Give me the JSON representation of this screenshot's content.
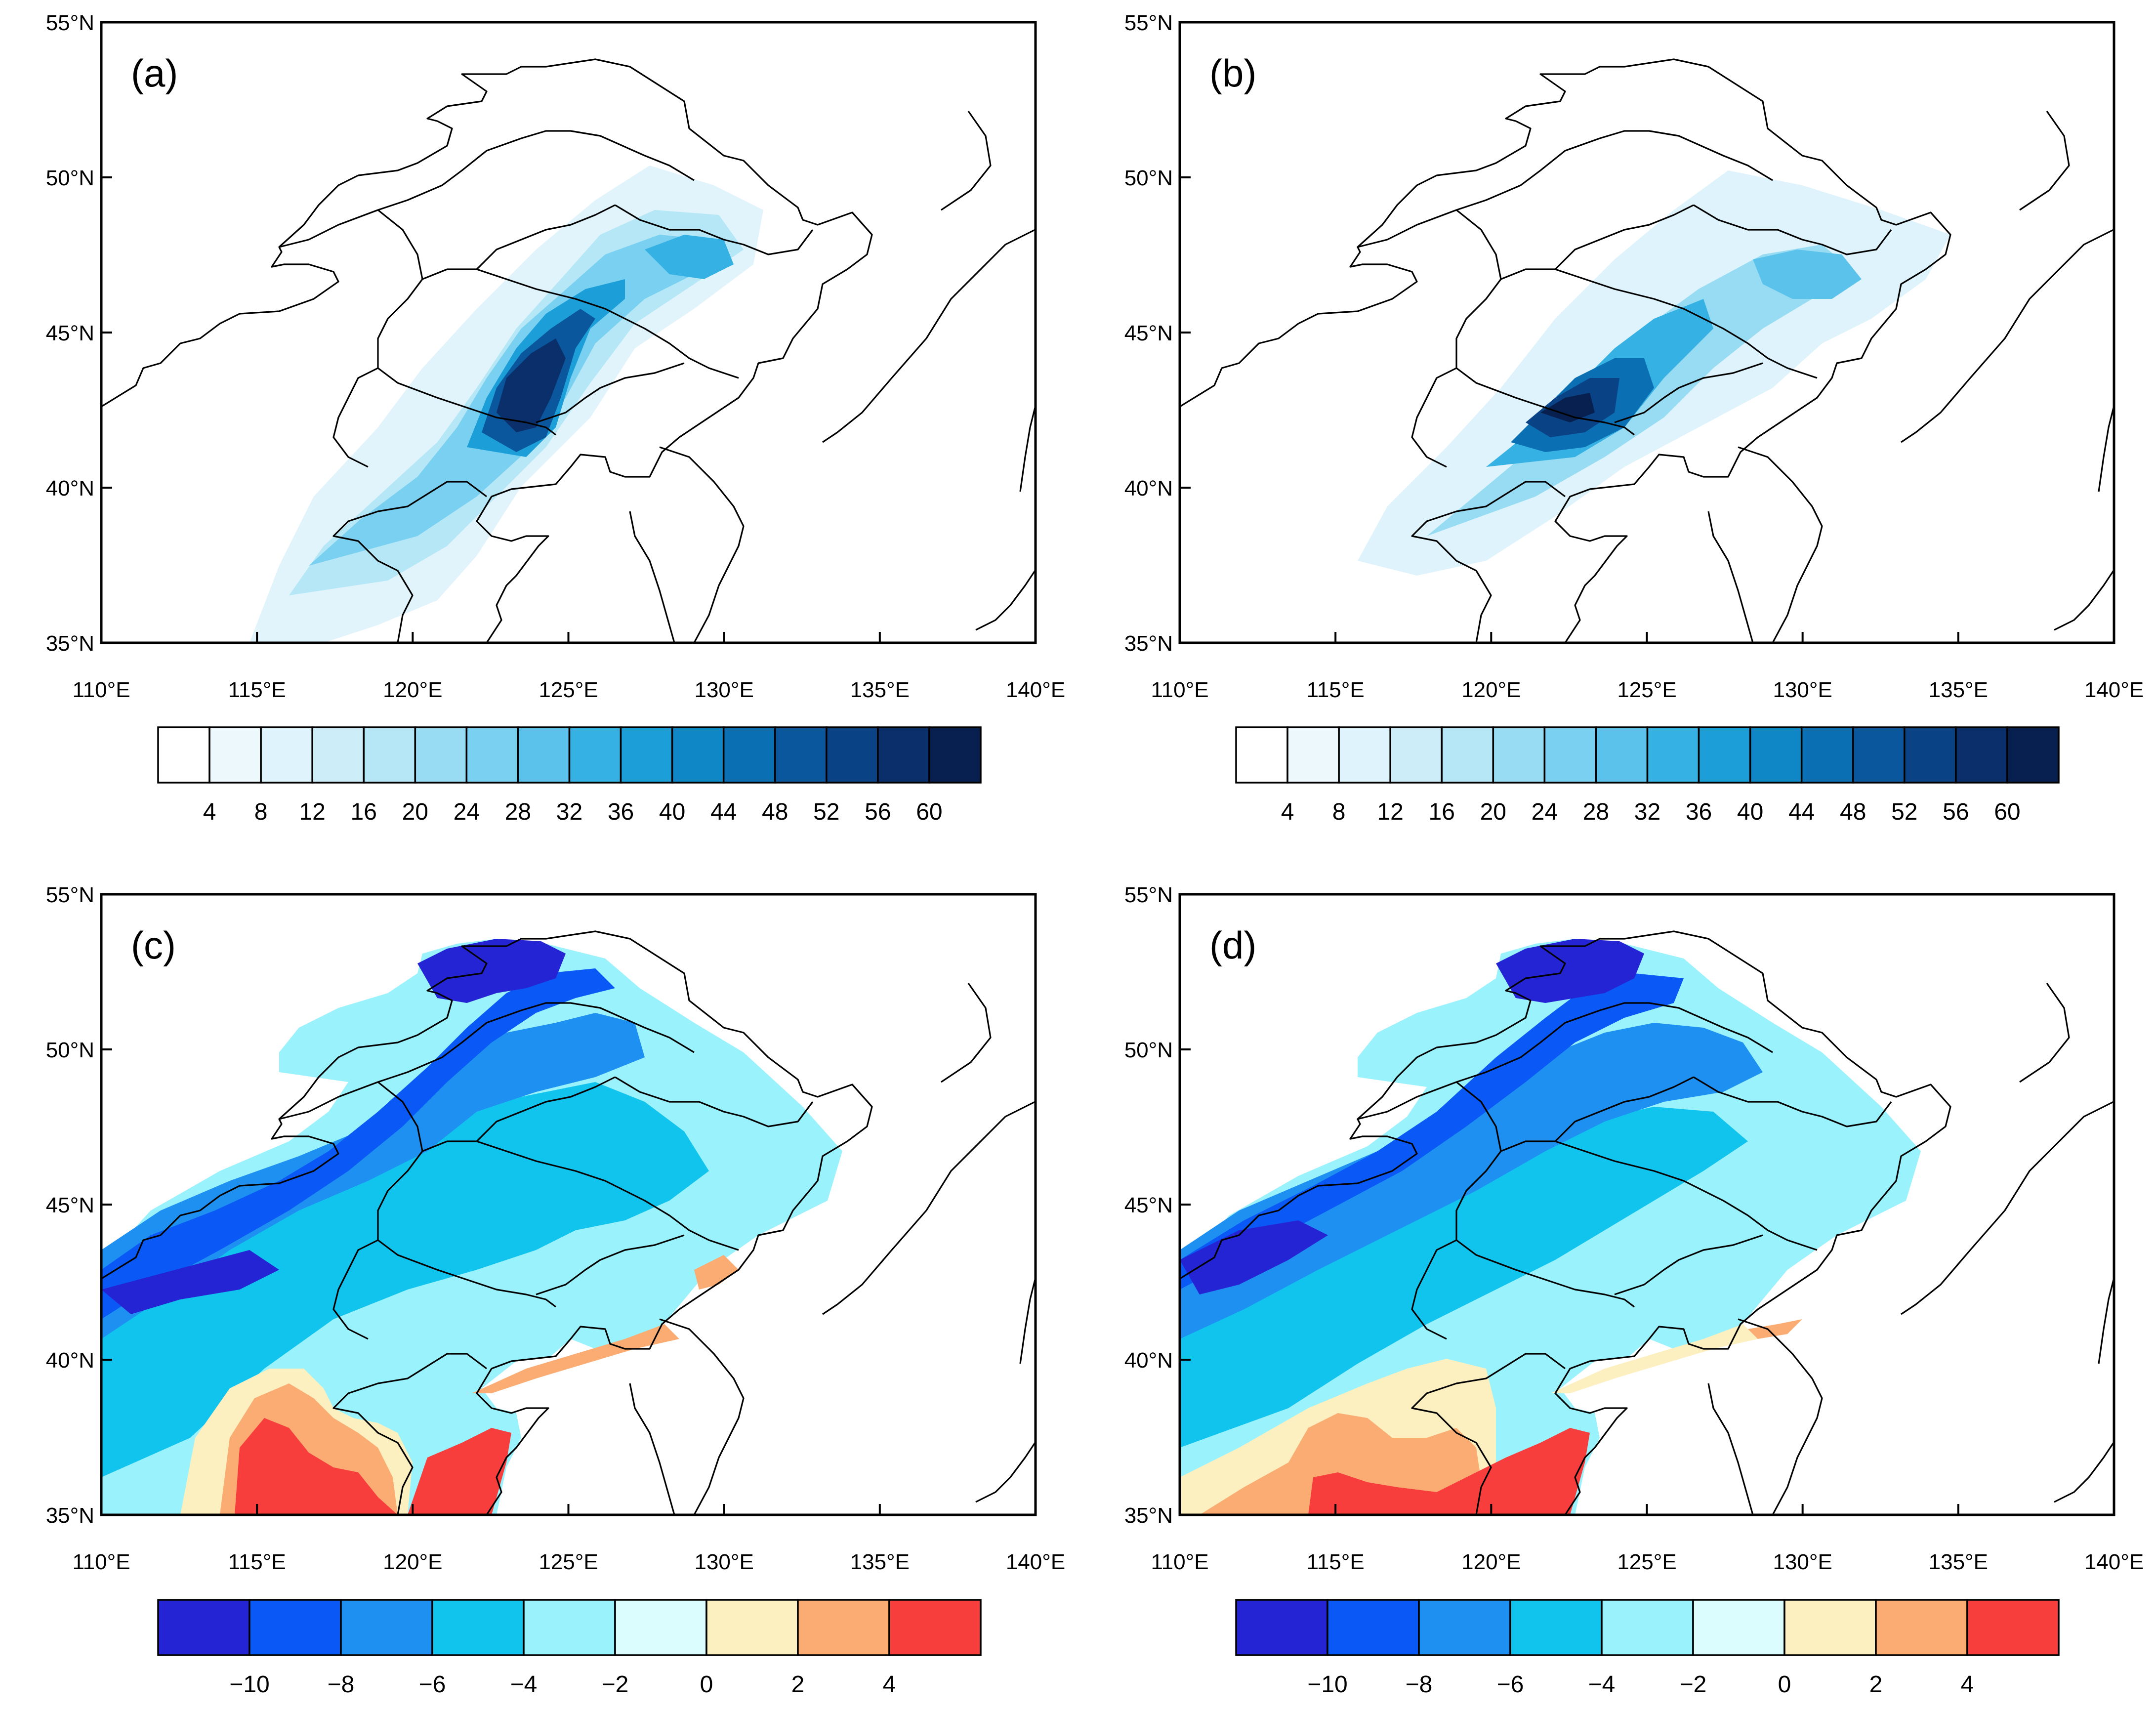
{
  "panels": [
    {
      "id": "a",
      "label": "(a)",
      "colorbar": "precip"
    },
    {
      "id": "b",
      "label": "(b)",
      "colorbar": "precip"
    },
    {
      "id": "c",
      "label": "(c)",
      "colorbar": "temp"
    },
    {
      "id": "d",
      "label": "(d)",
      "colorbar": "temp"
    }
  ],
  "axes": {
    "lon_labels": [
      "110°E",
      "115°E",
      "120°E",
      "125°E",
      "130°E",
      "135°E",
      "140°E"
    ],
    "lat_labels": [
      "35°N",
      "40°N",
      "45°N",
      "50°N",
      "55°N"
    ],
    "lon_range": [
      110,
      140
    ],
    "lat_range": [
      35,
      55
    ]
  },
  "colorbars": {
    "precip": {
      "ticks": [
        "4",
        "8",
        "12",
        "16",
        "20",
        "24",
        "28",
        "32",
        "36",
        "40",
        "44",
        "48",
        "52",
        "56",
        "60"
      ],
      "colors": [
        "#ffffff",
        "#edf8fd",
        "#def3fb",
        "#cdeef9",
        "#b5e7f6",
        "#98dcf3",
        "#7ad0f0",
        "#5bc2ec",
        "#36b1e3",
        "#1c9fd8",
        "#0f87c7",
        "#0b6fb3",
        "#0a579d",
        "#0a4286",
        "#0a2f6b",
        "#08204f"
      ]
    },
    "temp": {
      "ticks": [
        "−10",
        "−8",
        "−6",
        "−4",
        "−2",
        "0",
        "2",
        "4"
      ],
      "colors": [
        "#2424d4",
        "#0a58f5",
        "#1e90f2",
        "#10c4ee",
        "#9af2fc",
        "#dcfdfd",
        "#fcefc0",
        "#faac73",
        "#f83d3d"
      ]
    }
  }
}
